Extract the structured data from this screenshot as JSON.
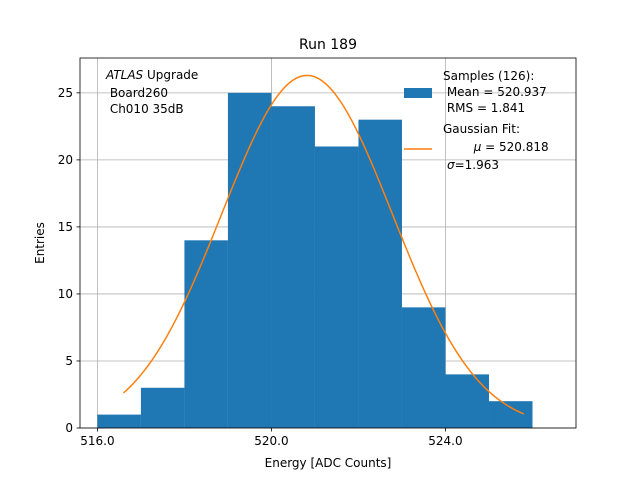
{
  "chart_data": {
    "type": "bar",
    "title": "Run 189",
    "xlabel": "Energy [ADC Counts]",
    "ylabel": "Entries",
    "xlim": [
      515.6,
      527.0
    ],
    "ylim": [
      0,
      27.6
    ],
    "grid": true,
    "xticks": [
      516,
      520,
      524
    ],
    "xtick_labels": [
      "516.0",
      "520.0",
      "524.0"
    ],
    "yticks": [
      0,
      5,
      10,
      15,
      20,
      25
    ],
    "ytick_labels": [
      "0",
      "5",
      "10",
      "15",
      "20",
      "25"
    ],
    "histogram": {
      "name": "Samples",
      "color": "#1f77b4",
      "bin_edges": [
        516,
        517,
        518,
        519,
        520,
        521,
        522,
        523,
        524,
        525,
        526
      ],
      "counts": [
        1,
        3,
        14,
        25,
        24,
        21,
        23,
        9,
        4,
        2
      ]
    },
    "fit": {
      "name": "Gaussian Fit",
      "color": "#ff7f0e",
      "amplitude": 26.3,
      "mu": 520.818,
      "sigma": 1.963,
      "x_range": [
        516.6,
        525.8
      ]
    },
    "annotation": {
      "line1_italic": "ATLAS",
      "line1_rest": " Upgrade",
      "line2": " Board260",
      "line3": " Ch010 35dB"
    },
    "legend": {
      "position": "top-right",
      "samples_title": "Samples (126):",
      "samples_mean": " Mean = 520.937",
      "samples_rms": " RMS = 1.841",
      "fit_title": "Gaussian Fit:",
      "fit_mu_symbol": "μ",
      "fit_mu_value": " = 520.818",
      "fit_sigma_symbol": "σ",
      "fit_sigma_value": "=1.963"
    }
  }
}
